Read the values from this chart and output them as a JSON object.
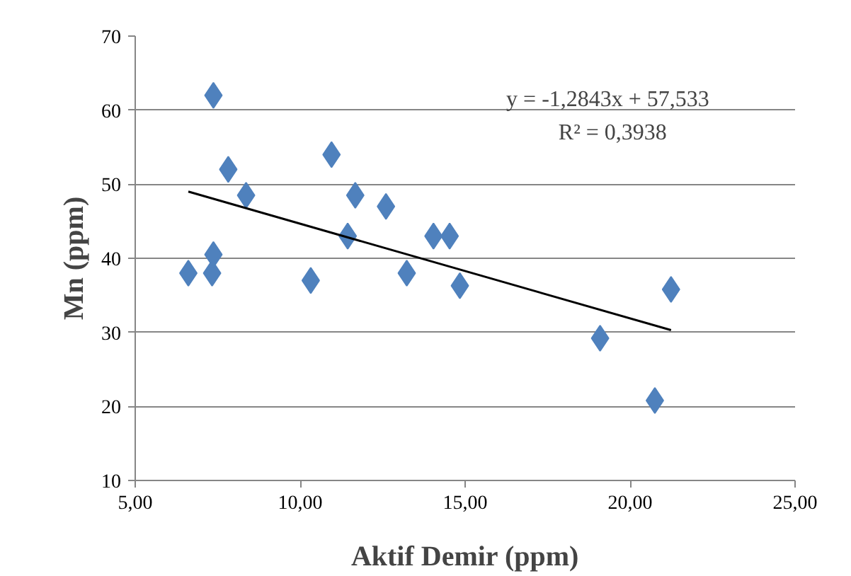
{
  "chart_data": {
    "type": "scatter",
    "xlabel": "Aktif Demir (ppm)",
    "ylabel": "Mn (ppm)",
    "x": [
      6.61,
      7.33,
      7.37,
      7.37,
      7.82,
      8.36,
      10.32,
      10.95,
      11.44,
      11.67,
      12.6,
      13.23,
      14.04,
      14.53,
      14.84,
      19.09,
      20.75,
      21.24
    ],
    "series": [
      {
        "color": "#4f81bd",
        "marker": "diamond",
        "values": [
          38,
          38,
          40.5,
          62,
          52,
          48.5,
          37,
          54,
          43,
          48.5,
          47,
          38,
          43,
          43,
          36.3,
          29.2,
          20.8,
          35.8
        ]
      },
      {
        "type": "line",
        "color": "#000000",
        "marker": "none",
        "line_style": "solid",
        "x": [
          6.61,
          21.24
        ],
        "values": [
          49.0,
          30.3
        ]
      }
    ],
    "xlim": [
      5,
      25
    ],
    "ylim": [
      10,
      70
    ],
    "xticks": [
      {
        "value": 5,
        "label": "5,00"
      },
      {
        "value": 10,
        "label": "10,00"
      },
      {
        "value": 15,
        "label": "15,00"
      },
      {
        "value": 20,
        "label": "20,00"
      },
      {
        "value": 25,
        "label": "25,00"
      }
    ],
    "yticks": [
      10,
      20,
      30,
      40,
      50,
      60,
      70
    ],
    "grid": "y",
    "annotations": [
      "y = -1,2843x + 57,533",
      "R² = 0,3938"
    ]
  }
}
